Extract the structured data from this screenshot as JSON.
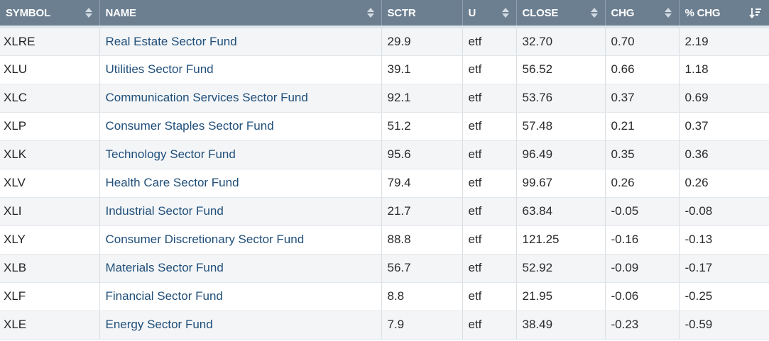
{
  "table": {
    "headers": {
      "symbol": "SYMBOL",
      "name": "NAME",
      "sctr": "SCTR",
      "u": "U",
      "close": "CLOSE",
      "chg": "CHG",
      "pct_chg": "% CHG"
    },
    "rows": [
      {
        "symbol": "XLRE",
        "name": "Real Estate Sector Fund",
        "sctr": "29.9",
        "u": "etf",
        "close": "32.70",
        "chg": "0.70",
        "pct_chg": "2.19"
      },
      {
        "symbol": "XLU",
        "name": "Utilities Sector Fund",
        "sctr": "39.1",
        "u": "etf",
        "close": "56.52",
        "chg": "0.66",
        "pct_chg": "1.18"
      },
      {
        "symbol": "XLC",
        "name": "Communication Services Sector Fund",
        "sctr": "92.1",
        "u": "etf",
        "close": "53.76",
        "chg": "0.37",
        "pct_chg": "0.69"
      },
      {
        "symbol": "XLP",
        "name": "Consumer Staples Sector Fund",
        "sctr": "51.2",
        "u": "etf",
        "close": "57.48",
        "chg": "0.21",
        "pct_chg": "0.37"
      },
      {
        "symbol": "XLK",
        "name": "Technology Sector Fund",
        "sctr": "95.6",
        "u": "etf",
        "close": "96.49",
        "chg": "0.35",
        "pct_chg": "0.36"
      },
      {
        "symbol": "XLV",
        "name": "Health Care Sector Fund",
        "sctr": "79.4",
        "u": "etf",
        "close": "99.67",
        "chg": "0.26",
        "pct_chg": "0.26"
      },
      {
        "symbol": "XLI",
        "name": "Industrial Sector Fund",
        "sctr": "21.7",
        "u": "etf",
        "close": "63.84",
        "chg": "-0.05",
        "pct_chg": "-0.08"
      },
      {
        "symbol": "XLY",
        "name": "Consumer Discretionary Sector Fund",
        "sctr": "88.8",
        "u": "etf",
        "close": "121.25",
        "chg": "-0.16",
        "pct_chg": "-0.13"
      },
      {
        "symbol": "XLB",
        "name": "Materials Sector Fund",
        "sctr": "56.7",
        "u": "etf",
        "close": "52.92",
        "chg": "-0.09",
        "pct_chg": "-0.17"
      },
      {
        "symbol": "XLF",
        "name": "Financial Sector Fund",
        "sctr": "8.8",
        "u": "etf",
        "close": "21.95",
        "chg": "-0.06",
        "pct_chg": "-0.25"
      },
      {
        "symbol": "XLE",
        "name": "Energy Sector Fund",
        "sctr": "7.9",
        "u": "etf",
        "close": "38.49",
        "chg": "-0.23",
        "pct_chg": "-0.59"
      }
    ],
    "sort": {
      "column": "pct_chg",
      "direction": "descending"
    }
  },
  "icons": {
    "sortable": "sort-both-icon",
    "sorted_desc": "sort-descending-icon"
  },
  "colors": {
    "header_bg": "#6c7f91",
    "header_text": "#ffffff",
    "link": "#1f4e79",
    "row_stripe": "#f3f5f7"
  }
}
